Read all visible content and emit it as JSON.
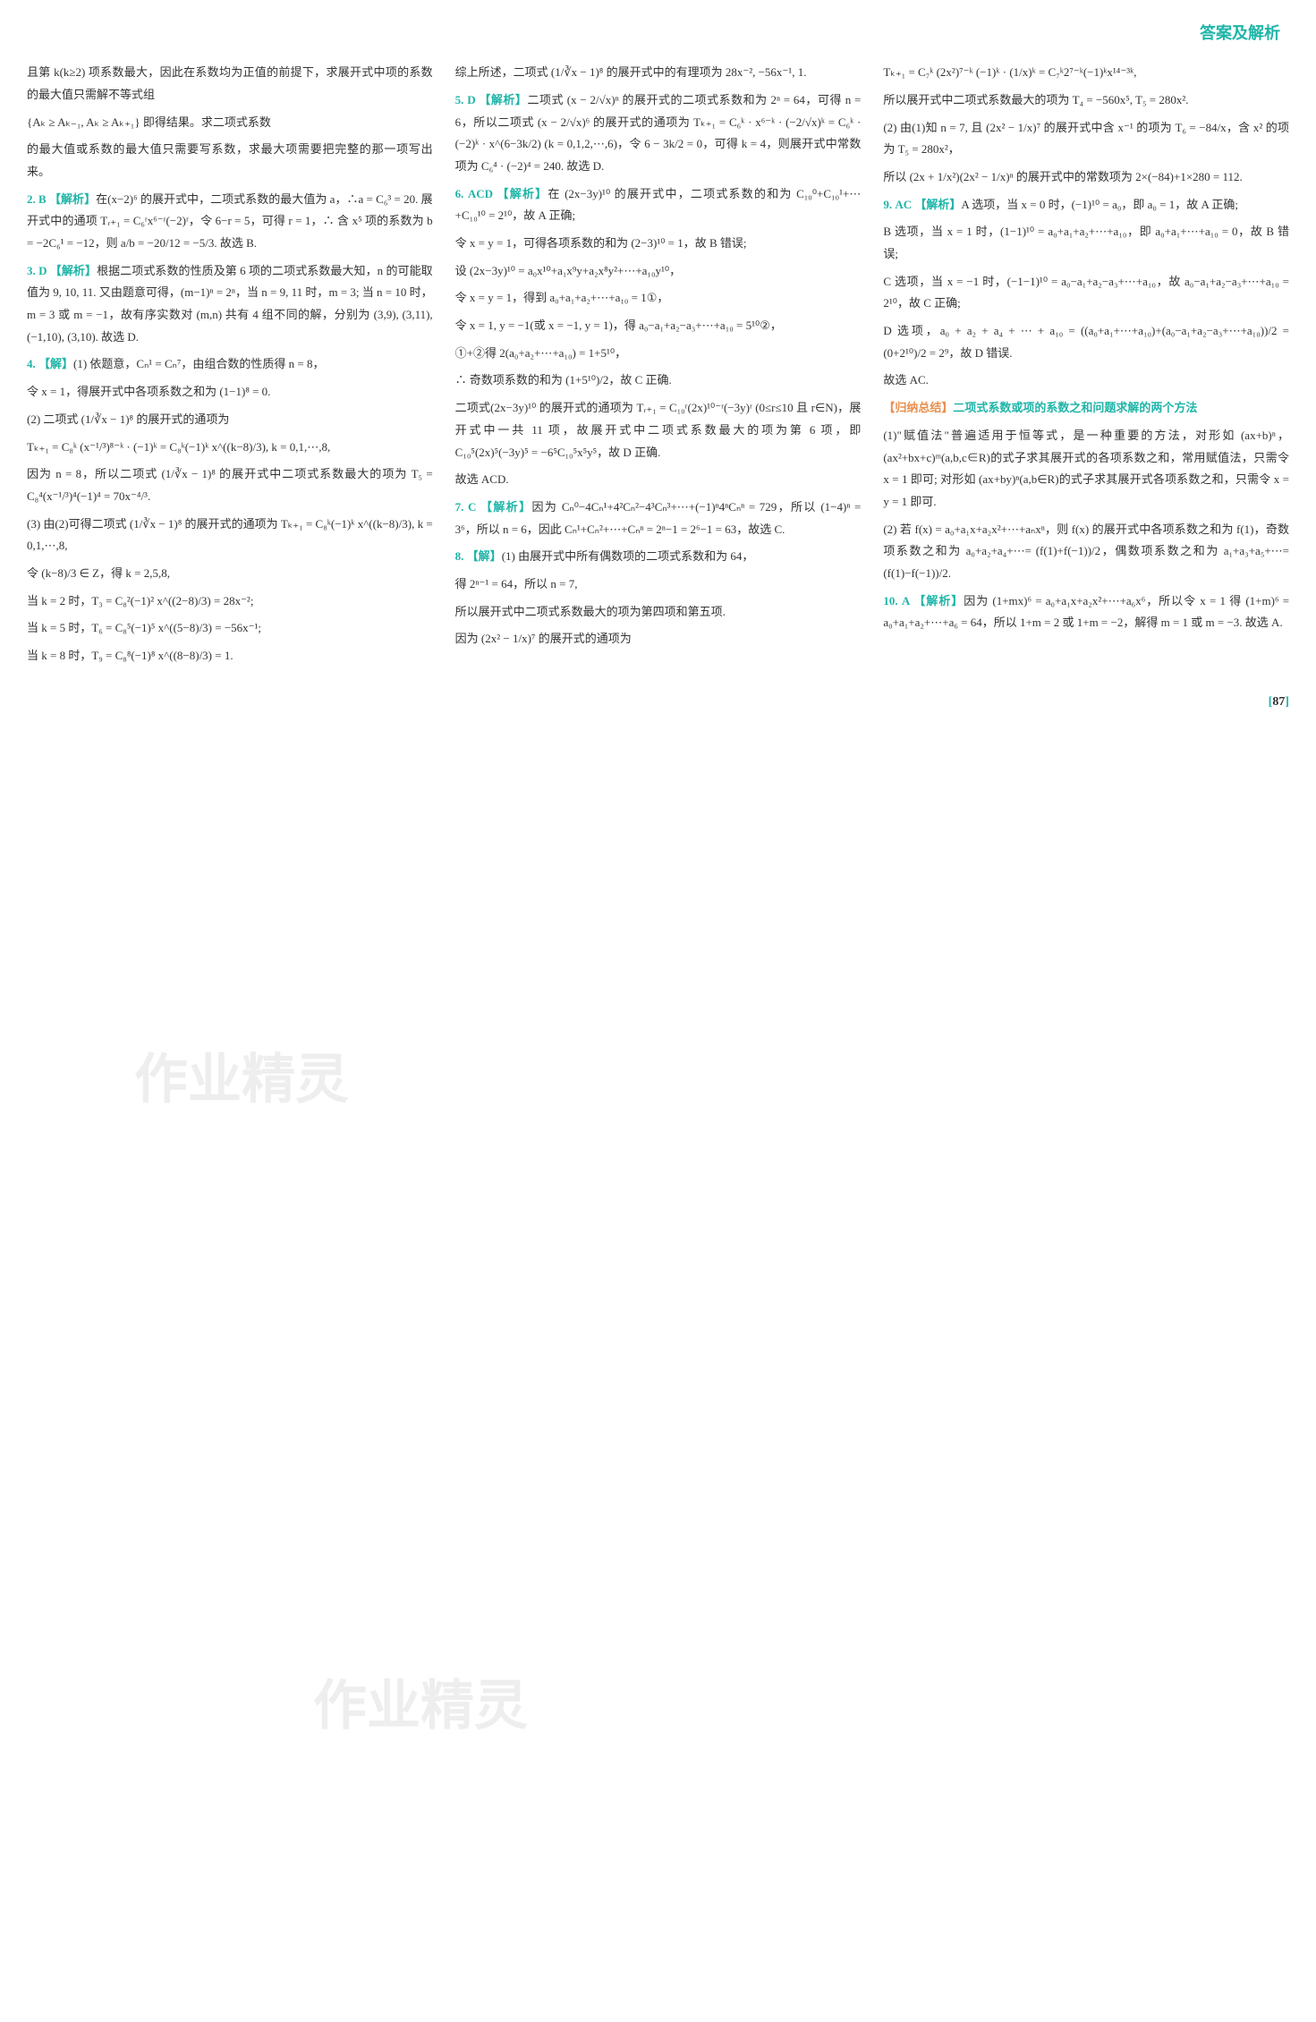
{
  "header": "答案及解析",
  "watermark1": "作业精灵",
  "watermark2": "作业精灵",
  "pageNum": "87",
  "col1": {
    "p1": "且第 k(k≥2) 项系数最大，因此在系数均为正值的前提下，求展开式中项的系数的最大值只需解不等式组",
    "p2": "{Aₖ ≥ Aₖ₋₁, Aₖ ≥ Aₖ₊₁} 即得结果。求二项式系数",
    "p3": "的最大值或系数的最大值只需要写系数，求最大项需要把完整的那一项写出来。",
    "q2num": "2.",
    "q2ans": "B",
    "q2tag": "【解析】",
    "q2text1": "在(x−2)⁶ 的展开式中，二项式系数的最大值为 a，∴a = C₆³ = 20. 展开式中的通项 Tᵣ₊₁ = C₆ʳx⁶⁻ʳ(−2)ʳ，令 6−r = 5，可得 r = 1，∴ 含 x⁵ 项的系数为 b = −2C₆¹ = −12，则 a/b = −20/12 = −5/3. 故选 B.",
    "q3num": "3.",
    "q3ans": "D",
    "q3tag": "【解析】",
    "q3text1": "根据二项式系数的性质及第 6 项的二项式系数最大知，n 的可能取值为 9, 10, 11. 又由题意可得，(m−1)ⁿ = 2ⁿ，当 n = 9, 11 时，m = 3; 当 n = 10 时，m = 3 或 m = −1，故有序实数对 (m,n) 共有 4 组不同的解，分别为 (3,9), (3,11), (−1,10), (3,10). 故选 D.",
    "q4num": "4.",
    "q4tag": "【解】",
    "q4text1": "(1) 依题意，Cₙ¹ = Cₙ⁷，由组合数的性质得 n = 8，",
    "q4text2": "令 x = 1，得展开式中各项系数之和为 (1−1)⁸ = 0.",
    "q4text3": "(2) 二项式 (1/∛x − 1)⁸ 的展开式的通项为",
    "q4text4": "Tₖ₊₁ = C₈ᵏ (x⁻¹/³)⁸⁻ᵏ · (−1)ᵏ = C₈ᵏ(−1)ᵏ x^((k−8)/3), k = 0,1,⋯,8,",
    "q4text5": "因为 n = 8，所以二项式 (1/∛x − 1)⁸ 的展开式中二项式系数最大的项为 T₅ = C₈⁴(x⁻¹/³)⁴(−1)⁴ = 70x⁻⁴/³.",
    "q4text6": "(3) 由(2)可得二项式 (1/∛x − 1)⁸ 的展开式的通项为 Tₖ₊₁ = C₈ᵏ(−1)ᵏ x^((k−8)/3), k = 0,1,⋯,8,",
    "q4text7": "令 (k−8)/3 ∈ Z，得 k = 2,5,8,",
    "q4text8": "当 k = 2 时，T₃ = C₈²(−1)² x^((2−8)/3) = 28x⁻²;",
    "q4text9": "当 k = 5 时，T₆ = C₈⁵(−1)⁵ x^((5−8)/3) = −56x⁻¹;",
    "q4text10": "当 k = 8 时，T₉ = C₈⁸(−1)⁸ x^((8−8)/3) = 1."
  },
  "col2": {
    "p1": "综上所述，二项式 (1/∛x − 1)⁸ 的展开式中的有理项为 28x⁻², −56x⁻¹, 1.",
    "q5num": "5.",
    "q5ans": "D",
    "q5tag": "【解析】",
    "q5text1": "二项式 (x − 2/√x)ⁿ 的展开式的二项式系数和为 2ⁿ = 64，可得 n = 6，所以二项式 (x − 2/√x)⁶ 的展开式的通项为 Tₖ₊₁ = C₆ᵏ · x⁶⁻ᵏ · (−2/√x)ᵏ = C₆ᵏ · (−2)ᵏ · x^(6−3k/2) (k = 0,1,2,⋯,6)，令 6 − 3k/2 = 0，可得 k = 4，则展开式中常数项为 C₆⁴ · (−2)⁴ = 240. 故选 D.",
    "q6num": "6.",
    "q6ans": "ACD",
    "q6tag": "【解析】",
    "q6text1": "在 (2x−3y)¹⁰ 的展开式中，二项式系数的和为 C₁₀⁰+C₁₀¹+⋯+C₁₀¹⁰ = 2¹⁰，故 A 正确;",
    "q6text2": "令 x = y = 1，可得各项系数的和为 (2−3)¹⁰ = 1，故 B 错误;",
    "q6text3": "设 (2x−3y)¹⁰ = a₀x¹⁰+a₁x⁹y+a₂x⁸y²+⋯+a₁₀y¹⁰，",
    "q6text4": "令 x = y = 1，得到 a₀+a₁+a₂+⋯+a₁₀ = 1①，",
    "q6text5": "令 x = 1, y = −1(或 x = −1, y = 1)，得 a₀−a₁+a₂−a₃+⋯+a₁₀ = 5¹⁰②，",
    "q6text6": "①+②得 2(a₀+a₂+⋯+a₁₀) = 1+5¹⁰，",
    "q6text7": "∴ 奇数项系数的和为 (1+5¹⁰)/2，故 C 正确.",
    "q6text8": "二项式(2x−3y)¹⁰ 的展开式的通项为 Tᵣ₊₁ = C₁₀ʳ(2x)¹⁰⁻ʳ(−3y)ʳ (0≤r≤10 且 r∈N)，展开式中一共 11 项，故展开式中二项式系数最大的项为第 6 项，即 C₁₀⁵(2x)⁵(−3y)⁵ = −6⁵C₁₀⁵x⁵y⁵，故 D 正确.",
    "q6text9": "故选 ACD.",
    "q7num": "7.",
    "q7ans": "C",
    "q7tag": "【解析】",
    "q7text1": "因为 Cₙ⁰−4Cₙ¹+4²Cₙ²−4³Cₙ³+⋯+(−1)ⁿ4ⁿCₙⁿ = 729，所以 (1−4)ⁿ = 3⁶，所以 n = 6，因此 Cₙ¹+Cₙ²+⋯+Cₙⁿ = 2ⁿ−1 = 2⁶−1 = 63，故选 C.",
    "q8num": "8.",
    "q8tag": "【解】",
    "q8text1": "(1) 由展开式中所有偶数项的二项式系数和为 64，",
    "q8text2": "得 2ⁿ⁻¹ = 64，所以 n = 7,",
    "q8text3": "所以展开式中二项式系数最大的项为第四项和第五项.",
    "q8text4": "因为 (2x² − 1/x)⁷ 的展开式的通项为"
  },
  "col3": {
    "p1": "Tₖ₊₁ = C₇ᵏ (2x²)⁷⁻ᵏ (−1)ᵏ · (1/x)ᵏ = C₇ᵏ2⁷⁻ᵏ(−1)ᵏx¹⁴⁻³ᵏ,",
    "p2": "所以展开式中二项式系数最大的项为 T₄ = −560x⁵, T₅ = 280x².",
    "p3": "(2) 由(1)知 n = 7, 且 (2x² − 1/x)⁷ 的展开式中含 x⁻¹ 的项为 T₆ = −84/x，含 x² 的项为 T₅ = 280x²，",
    "p4": "所以 (2x + 1/x²)(2x² − 1/x)ⁿ 的展开式中的常数项为 2×(−84)+1×280 = 112.",
    "q9num": "9.",
    "q9ans": "AC",
    "q9tag": "【解析】",
    "q9text1": "A 选项，当 x = 0 时，(−1)¹⁰ = a₀，即 a₀ = 1，故 A 正确;",
    "q9text2": "B 选项，当 x = 1 时，(1−1)¹⁰ = a₀+a₁+a₂+⋯+a₁₀，即 a₀+a₁+⋯+a₁₀ = 0，故 B 错误;",
    "q9text3": "C 选项，当 x = −1 时，(−1−1)¹⁰ = a₀−a₁+a₂−a₃+⋯+a₁₀，故 a₀−a₁+a₂−a₃+⋯+a₁₀ = 2¹⁰，故 C 正确;",
    "q9text4": "D 选项，a₀ + a₂ + a₄ + ⋯ + a₁₀ = ((a₀+a₁+⋯+a₁₀)+(a₀−a₁+a₂−a₃+⋯+a₁₀))/2 = (0+2¹⁰)/2 = 2⁹，故 D 错误.",
    "q9text5": "故选 AC.",
    "sumTag": "【归纳总结】",
    "sumTitle": "二项式系数或项的系数之和问题求解的两个方法",
    "sumText1": "(1)\"赋值法\"普遍适用于恒等式，是一种重要的方法，对形如 (ax+b)ⁿ，(ax²+bx+c)ᵐ(a,b,c∈R)的式子求其展开式的各项系数之和，常用赋值法，只需令 x = 1 即可; 对形如 (ax+by)ⁿ(a,b∈R)的式子求其展开式各项系数之和，只需令 x = y = 1 即可.",
    "sumText2": "(2) 若 f(x) = a₀+a₁x+a₂x²+⋯+aₙxⁿ，则 f(x) 的展开式中各项系数之和为 f(1)，奇数项系数之和为 a₀+a₂+a₄+⋯= (f(1)+f(−1))/2，偶数项系数之和为 a₁+a₃+a₅+⋯= (f(1)−f(−1))/2.",
    "q10num": "10.",
    "q10ans": "A",
    "q10tag": "【解析】",
    "q10text1": "因为 (1+mx)⁶ = a₀+a₁x+a₂x²+⋯+a₆x⁶，所以令 x = 1 得 (1+m)⁶ = a₀+a₁+a₂+⋯+a₆ = 64，所以 1+m = 2 或 1+m = −2，解得 m = 1 或 m = −3. 故选 A."
  }
}
